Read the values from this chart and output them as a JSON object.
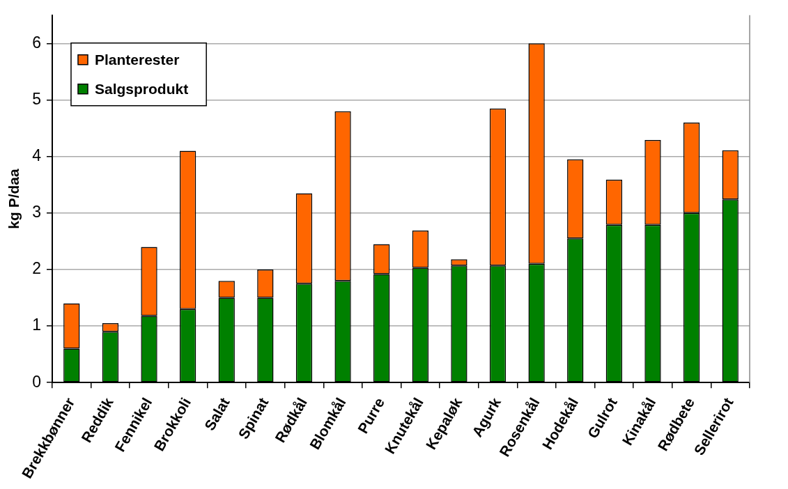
{
  "chart_data": {
    "type": "bar",
    "stacked": true,
    "ylabel": "kg P/daa",
    "categories": [
      "Brekkbønner",
      "Reddik",
      "Fennikel",
      "Brokkoli",
      "Salat",
      "Spinat",
      "Rødkål",
      "Blomkål",
      "Purre",
      "Knutekål",
      "Kepaløk",
      "Agurk",
      "Rosenkål",
      "Hodekål",
      "Gulrot",
      "Kinakål",
      "Rødbete",
      "Sellerirot"
    ],
    "series": [
      {
        "name": "Salgsprodukt",
        "color": "#008000",
        "values": [
          0.6,
          0.9,
          1.18,
          1.3,
          1.5,
          1.5,
          1.75,
          1.8,
          1.92,
          2.03,
          2.07,
          2.07,
          2.1,
          2.55,
          2.79,
          2.79,
          3.0,
          3.24
        ]
      },
      {
        "name": "Planterester",
        "color": "#ff6600",
        "values": [
          0.8,
          0.15,
          1.22,
          2.8,
          0.3,
          0.5,
          1.6,
          3.0,
          0.53,
          0.66,
          0.11,
          2.78,
          3.9,
          1.4,
          0.8,
          1.5,
          1.6,
          0.87
        ]
      }
    ],
    "ylim": [
      0,
      6.5
    ],
    "yticks": [
      0,
      1,
      2,
      3,
      4,
      5,
      6
    ],
    "grid": "y",
    "legend": "top left"
  }
}
